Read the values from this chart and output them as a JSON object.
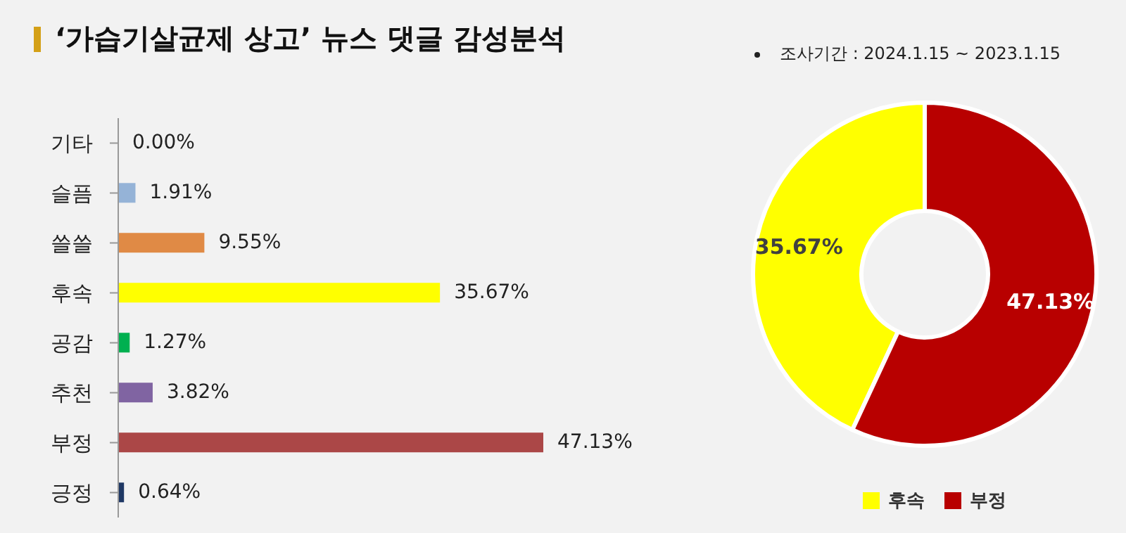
{
  "chart_data": [
    {
      "type": "bar",
      "orientation": "horizontal",
      "title": "‘가습기살균제 상고’ 뉴스 댓글 감성분석",
      "categories": [
        "기타",
        "슬픔",
        "쓸쓸",
        "후속",
        "공감",
        "추천",
        "부정",
        "긍정"
      ],
      "values": [
        0,
        1.91,
        9.55,
        35.67,
        1.27,
        3.82,
        47.13,
        0.64
      ],
      "colors": [
        "#808080",
        "#95b3d7",
        "#e08a45",
        "#ffff00",
        "#00b050",
        "#8064a2",
        "#ab4747",
        "#1f3864"
      ],
      "value_labels": [
        "0.00%",
        "1.91%",
        "9.55%",
        "35.67%",
        "1.27%",
        "3.82%",
        "47.13%",
        "0.64%"
      ],
      "data_labels": false
    },
    {
      "type": "donut",
      "annotations": [
        "조사기간 : 2024.1.15 ~ 2023.1.15"
      ],
      "categories": [
        "후속",
        "부정"
      ],
      "values": [
        35.67,
        47.13
      ],
      "colors": [
        "#ffff00",
        "#b80000"
      ],
      "value_labels": [
        "35.67%",
        "47.13%"
      ],
      "legend": "bottom"
    }
  ]
}
